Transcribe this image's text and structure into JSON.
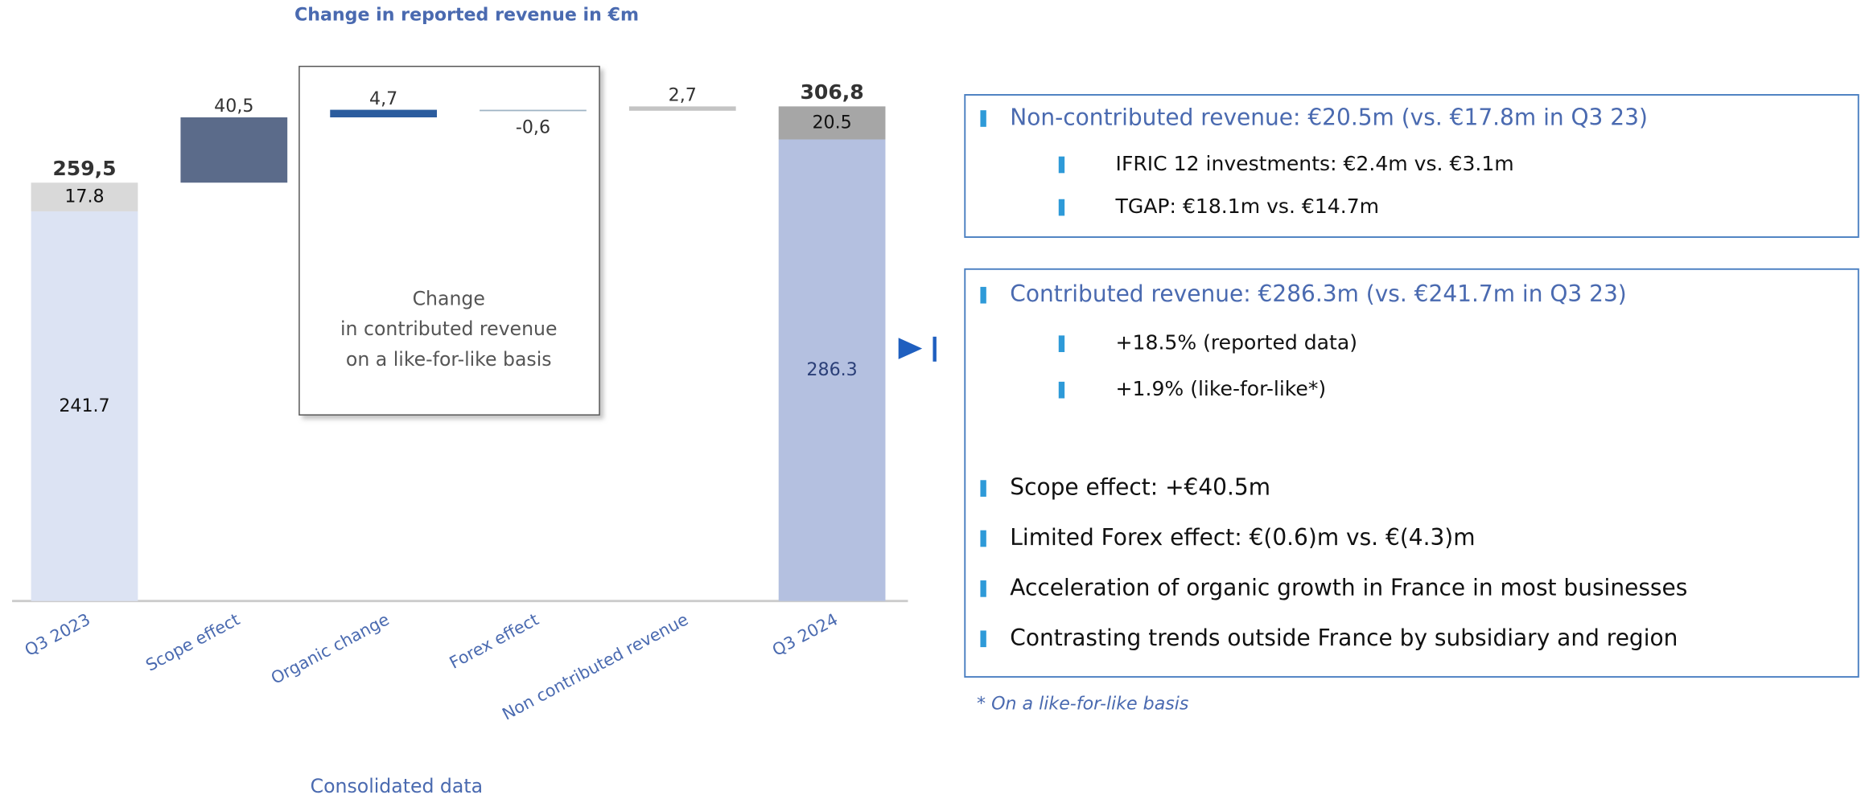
{
  "chart_data": {
    "type": "waterfall",
    "title": "Change in reported revenue in €m",
    "x_label": "Consolidated data",
    "categories": [
      "Q3 2023",
      "Scope effect",
      "Organic change",
      "Forex effect",
      "Non contributed revenue",
      "Q3 2024"
    ],
    "values": [
      259.5,
      40.5,
      4.7,
      -0.6,
      2.7,
      306.8
    ],
    "value_labels": [
      "259,5",
      "40,5",
      "4,7",
      "-0,6",
      "2,7",
      "306,8"
    ],
    "colors": [
      "#dce3f3",
      "#5b6b8a",
      "#2b5c9e",
      "#9fb4c4",
      "#c4c4c4",
      "#b4c0e0"
    ],
    "contributed": [
      241.7,
      null,
      null,
      null,
      null,
      286.3
    ],
    "contributed_color": [
      "#dce3f3",
      null,
      null,
      null,
      null,
      "#b4c0e0"
    ],
    "non_contributed": [
      17.8,
      null,
      null,
      null,
      null,
      20.5
    ],
    "non_contributed_color": [
      "#d9d9d9",
      null,
      null,
      null,
      null,
      "#a6a6a6"
    ],
    "annotation": [
      "Change",
      "in contributed revenue",
      "on a like-for-like basis"
    ]
  },
  "panel": {
    "box1": {
      "heading": "Non-contributed revenue: €20.5m (vs. €17.8m in Q3 23)",
      "items": [
        "IFRIC 12 investments: €2.4m vs. €3.1m",
        "TGAP: €18.1m vs. €14.7m"
      ]
    },
    "box2": {
      "heading": "Contributed revenue: €286.3m (vs. €241.7m in Q3 23)",
      "items": [
        "+18.5% (reported data)",
        "+1.9% (like-for-like*)"
      ],
      "bullets": [
        "Scope effect: +€40.5m",
        "Limited Forex effect: €(0.6)m vs. €(4.3)m",
        "Acceleration of organic growth in France in most businesses",
        "Contrasting trends outside France by subsidiary and region"
      ]
    },
    "footnote": "* On a like-for-like basis"
  }
}
